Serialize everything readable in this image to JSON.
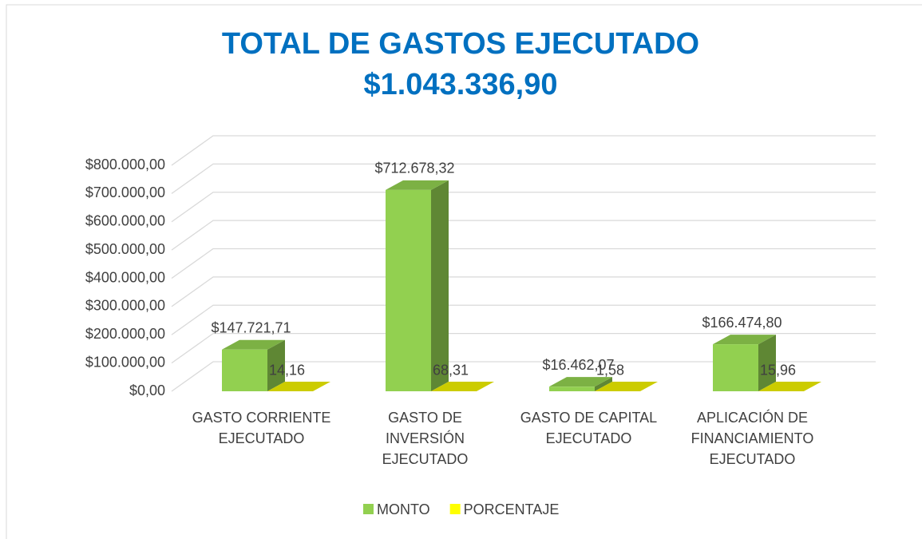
{
  "chart_data": {
    "type": "bar3d",
    "title": "TOTAL DE GASTOS EJECUTADO",
    "subtitle": "$1.043.336,90",
    "categories": [
      "GASTO CORRIENTE EJECUTADO",
      "GASTO DE INVERSIÓN EJECUTADO",
      "GASTO DE CAPITAL EJECUTADO",
      "APLICACIÓN DE FINANCIAMIENTO EJECUTADO"
    ],
    "series": [
      {
        "name": "MONTO",
        "color": "#92d050",
        "values": [
          147721.71,
          712678.32,
          16462.07,
          166474.8
        ],
        "value_labels": [
          "$147.721,71",
          "$712.678,32",
          "$16.462,07",
          "$166.474,80"
        ]
      },
      {
        "name": "PORCENTAJE",
        "color": "#ffff00",
        "values": [
          14.16,
          68.31,
          1.58,
          15.96
        ],
        "value_labels": [
          "14,16",
          "68,31",
          "1,58",
          "15,96"
        ]
      }
    ],
    "ylim": [
      0,
      800000
    ],
    "yticks": [
      {
        "value": 0,
        "label": "$0,00"
      },
      {
        "value": 100000,
        "label": "$100.000,00"
      },
      {
        "value": 200000,
        "label": "$200.000,00"
      },
      {
        "value": 300000,
        "label": "$300.000,00"
      },
      {
        "value": 400000,
        "label": "$400.000,00"
      },
      {
        "value": 500000,
        "label": "$500.000,00"
      },
      {
        "value": 600000,
        "label": "$600.000,00"
      },
      {
        "value": 700000,
        "label": "$700.000,00"
      },
      {
        "value": 800000,
        "label": "$800.000,00"
      }
    ],
    "grid": true,
    "legend": "bottom"
  }
}
